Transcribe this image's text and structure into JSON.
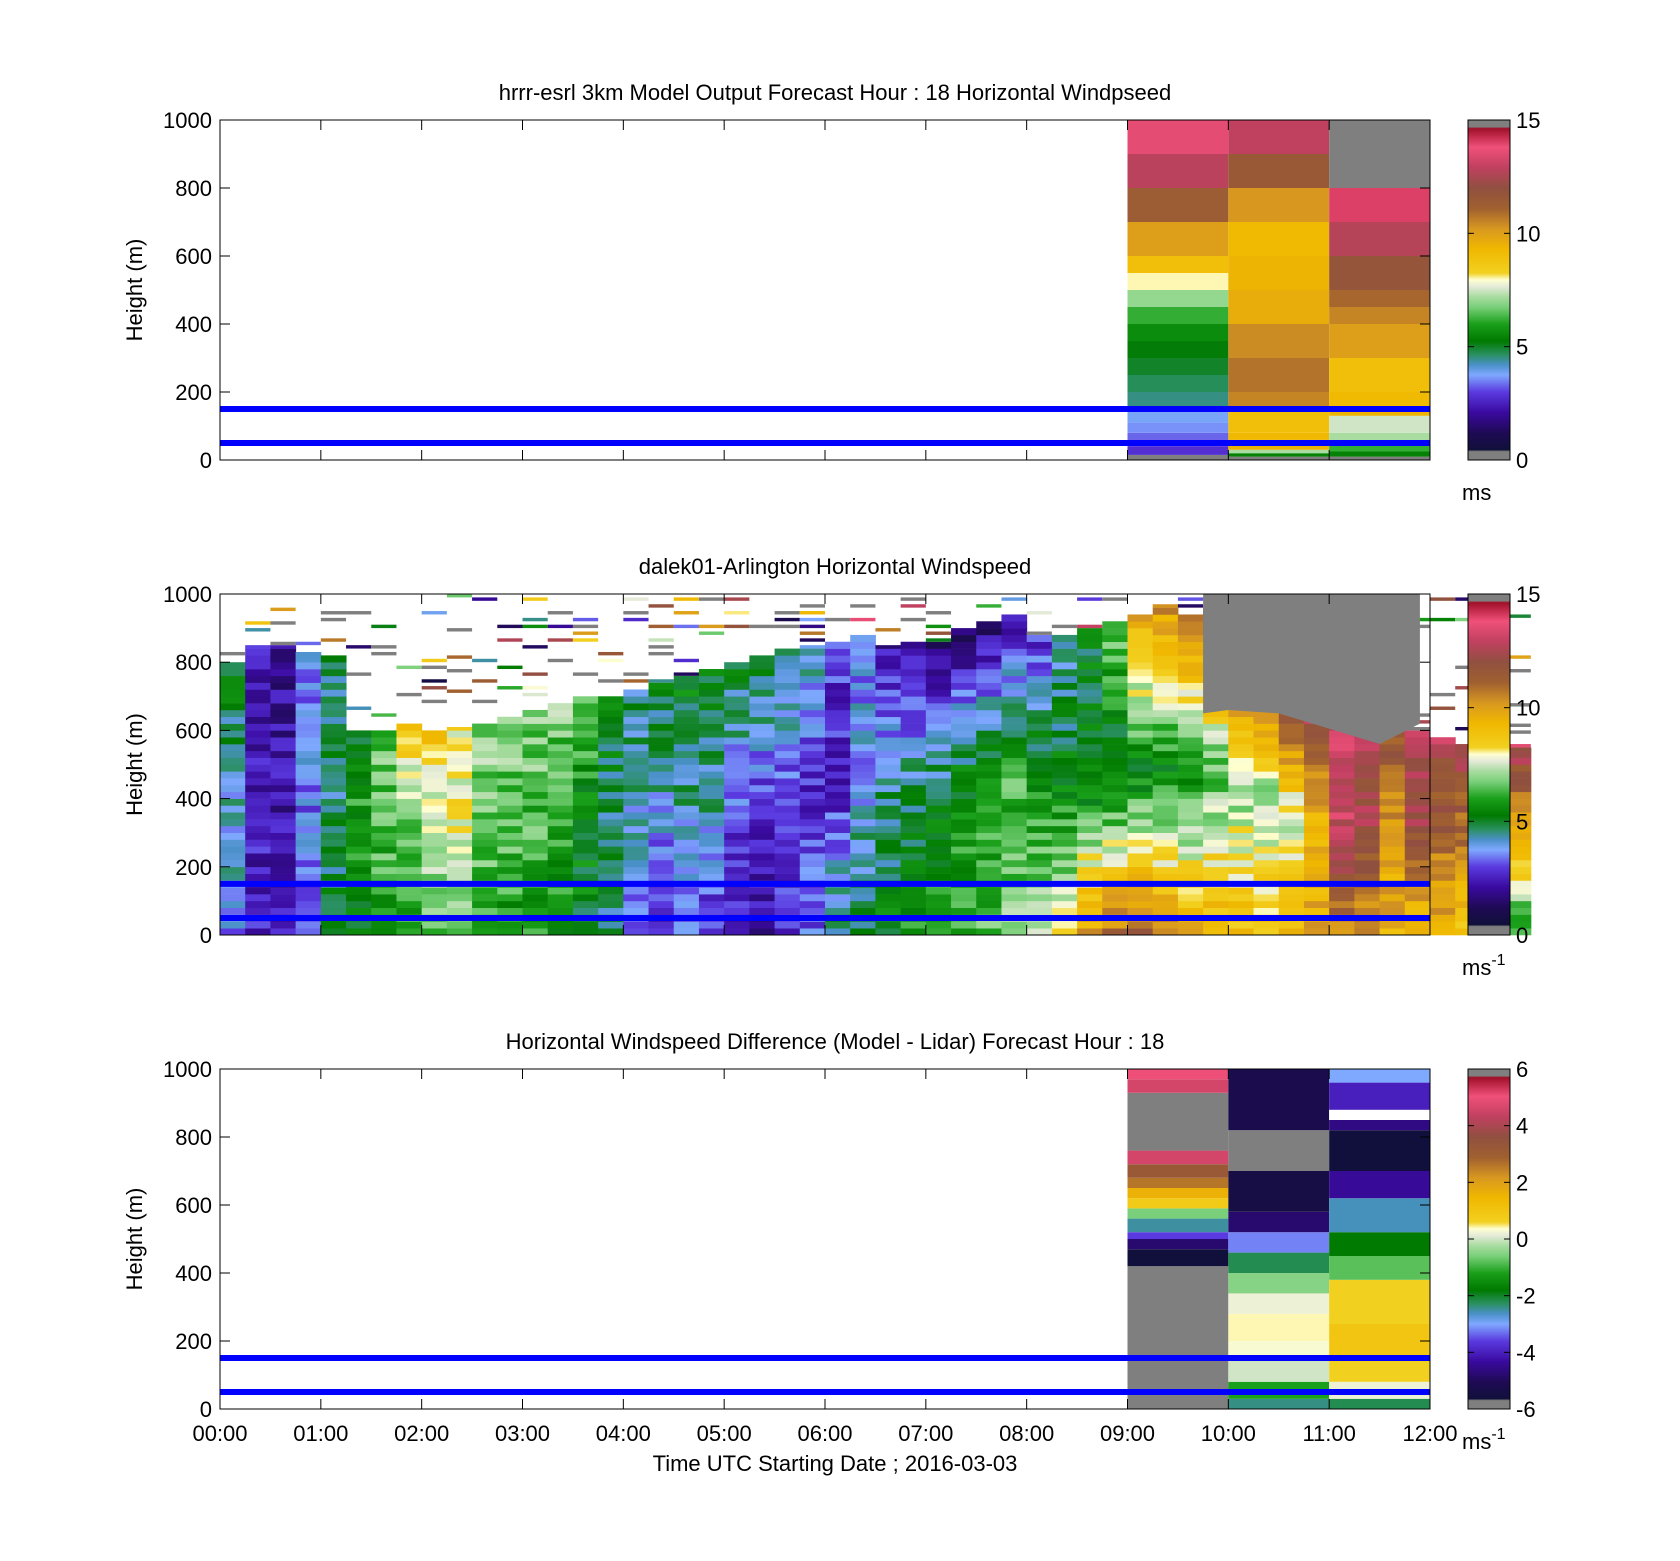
{
  "x_tick_labels": [
    "00:00",
    "01:00",
    "02:00",
    "03:00",
    "04:00",
    "05:00",
    "06:00",
    "07:00",
    "08:00",
    "09:00",
    "10:00",
    "11:00",
    "12:00"
  ],
  "x_axis_label": "Time UTC  Starting Date ; 2016-03-03",
  "reference_heights_m": [
    50,
    150
  ],
  "reference_line_color": "#0000ff",
  "chart_data": [
    {
      "type": "heatmap",
      "title": "hrrr-esrl 3km Model Output   Forecast Hour : 18 Horizontal Windpseed",
      "ylabel": "Height (m)",
      "ylim": [
        0,
        1000
      ],
      "yticks": [
        "0",
        "200",
        "400",
        "600",
        "800",
        "1000"
      ],
      "xlim_hours": [
        0,
        12
      ],
      "colorbar": {
        "min": 0,
        "max": 15,
        "ticks": [
          "0",
          "5",
          "10",
          "15"
        ],
        "unit": "ms"
      },
      "columns": [
        {
          "t0": 9,
          "t1": 10,
          "levels": [
            [
              0,
              15,
              -1
            ],
            [
              15,
              40,
              2.8
            ],
            [
              40,
              60,
              3.0
            ],
            [
              60,
              80,
              3.3
            ],
            [
              80,
              110,
              3.6
            ],
            [
              110,
              150,
              3.8
            ],
            [
              150,
              200,
              4.5
            ],
            [
              200,
              250,
              4.7
            ],
            [
              250,
              300,
              5.0
            ],
            [
              300,
              350,
              5.2
            ],
            [
              350,
              400,
              5.6
            ],
            [
              400,
              450,
              6.2
            ],
            [
              450,
              500,
              7.0
            ],
            [
              500,
              550,
              8.0
            ],
            [
              550,
              600,
              9.0
            ],
            [
              600,
              700,
              10.0
            ],
            [
              700,
              800,
              11.3
            ],
            [
              800,
              900,
              12.8
            ],
            [
              900,
              1000,
              13.6
            ]
          ]
        },
        {
          "t0": 10,
          "t1": 11,
          "levels": [
            [
              0,
              10,
              -1
            ],
            [
              10,
              20,
              5.4
            ],
            [
              20,
              30,
              7.2
            ],
            [
              30,
              60,
              9.5
            ],
            [
              60,
              80,
              9.3
            ],
            [
              80,
              150,
              9.0
            ],
            [
              150,
              200,
              10.5
            ],
            [
              200,
              300,
              10.8
            ],
            [
              300,
              400,
              10.4
            ],
            [
              400,
              500,
              9.6
            ],
            [
              500,
              600,
              9.4
            ],
            [
              600,
              700,
              9.2
            ],
            [
              700,
              800,
              10.2
            ],
            [
              800,
              900,
              11.5
            ],
            [
              900,
              1000,
              12.9
            ]
          ]
        },
        {
          "t0": 11,
          "t1": 12,
          "levels": [
            [
              0,
              10,
              -1
            ],
            [
              10,
              25,
              5.4
            ],
            [
              25,
              50,
              6.2
            ],
            [
              50,
              80,
              7.2
            ],
            [
              80,
              130,
              7.5
            ],
            [
              130,
              150,
              9.4
            ],
            [
              150,
              200,
              9.2
            ],
            [
              200,
              300,
              9.0
            ],
            [
              300,
              400,
              10.0
            ],
            [
              400,
              450,
              10.5
            ],
            [
              450,
              500,
              11.0
            ],
            [
              500,
              600,
              11.7
            ],
            [
              600,
              700,
              12.7
            ],
            [
              700,
              800,
              14.0
            ],
            [
              800,
              1000,
              -1
            ]
          ]
        }
      ]
    },
    {
      "type": "heatmap",
      "title": "dalek01-Arlington  Horizontal Windspeed",
      "ylabel": "Height (m)",
      "ylim": [
        0,
        1000
      ],
      "yticks": [
        "0",
        "200",
        "400",
        "600",
        "800",
        "1000"
      ],
      "xlim_hours": [
        0,
        12
      ],
      "colorbar": {
        "min": 0,
        "max": 15,
        "ticks": [
          "0",
          "5",
          "10",
          "15"
        ],
        "unit": "ms",
        "unit_exponent": "-1"
      },
      "column_width_hours": 0.25,
      "top_m": [
        800,
        850,
        850,
        830,
        820,
        600,
        600,
        620,
        600,
        610,
        620,
        640,
        660,
        680,
        700,
        700,
        720,
        740,
        760,
        780,
        800,
        820,
        840,
        840,
        860,
        880,
        850,
        860,
        860,
        900,
        920,
        940,
        880,
        880,
        900,
        920,
        940,
        970,
        940,
        960,
        900,
        840,
        700,
        650,
        660,
        630,
        640,
        600,
        580,
        560,
        550,
        550
      ],
      "low_m": [
        3.5,
        2.2,
        1.8,
        3.0,
        4.6,
        5.0,
        5.4,
        6.0,
        6.4,
        6.5,
        5.8,
        5.5,
        5.6,
        5.5,
        5.0,
        4.6,
        3.0,
        2.2,
        3.2,
        2.4,
        2.0,
        1.6,
        2.2,
        3.0,
        4.5,
        4.8,
        5.2,
        5.6,
        6.0,
        6.2,
        6.4,
        6.8,
        7.2,
        8.0,
        10.0,
        11.0,
        11.4,
        10.6,
        9.8,
        9.4,
        9.0,
        8.8,
        9.2,
        9.8,
        10.4,
        10.2,
        9.6,
        9.0,
        9.4,
        8.6,
        5.8,
        5.6
      ],
      "mid_m": [
        3.8,
        2.0,
        1.9,
        3.2,
        4.4,
        5.8,
        6.4,
        6.8,
        7.2,
        7.8,
        6.5,
        6.6,
        6.3,
        6.0,
        5.3,
        4.6,
        4.0,
        3.8,
        4.0,
        4.2,
        3.0,
        2.6,
        2.6,
        2.3,
        2.2,
        3.5,
        4.2,
        4.4,
        4.6,
        5.2,
        5.8,
        6.0,
        5.7,
        5.2,
        4.9,
        4.8,
        5.0,
        5.2,
        5.4,
        6.3,
        6.8,
        7.0,
        7.5,
        9.5,
        13.2,
        12.6,
        10.0,
        12.5,
        11.4,
        11.0,
        9.8,
        9.5
      ],
      "high_m": [
        5.2,
        2.2,
        1.6,
        3.2,
        4.4,
        5.2,
        6.6,
        8.8,
        8.8,
        7.8,
        7.0,
        6.6,
        6.8,
        6.8,
        6.5,
        5.0,
        4.4,
        5.0,
        5.2,
        5.0,
        5.0,
        5.2,
        5.0,
        4.2,
        2.6,
        3.4,
        1.8,
        1.4,
        1.2,
        1.0,
        1.0,
        1.8,
        2.4,
        4.0,
        5.0,
        6.5,
        10.0,
        10.5,
        11.0,
        12.5,
        14.0,
        13.5,
        13.0,
        13.0,
        13.5,
        12.8,
        12.5,
        12.8,
        13.0,
        12.8,
        12.0,
        13.0
      ]
    },
    {
      "type": "heatmap",
      "title": "Horizontal Windspeed Difference (Model - Lidar) Forecast Hour : 18",
      "ylabel": "Height (m)",
      "xlabel": "Time UTC  Starting Date ; 2016-03-03",
      "ylim": [
        0,
        1000
      ],
      "yticks": [
        "0",
        "200",
        "400",
        "600",
        "800",
        "1000"
      ],
      "xlim_hours": [
        0,
        12
      ],
      "colorbar": {
        "min": -6,
        "max": 6,
        "ticks": [
          "-6",
          "-4",
          "-2",
          "0",
          "2",
          "4",
          "6"
        ],
        "unit": "ms",
        "unit_exponent": "-1"
      },
      "columns": [
        {
          "t0": 9,
          "t1": 10,
          "levels": [
            [
              0,
              420,
              -99
            ],
            [
              420,
              470,
              -5.6
            ],
            [
              470,
              500,
              -4.8
            ],
            [
              500,
              520,
              -3.6
            ],
            [
              520,
              560,
              -2.5
            ],
            [
              560,
              590,
              -0.6
            ],
            [
              590,
              620,
              0.8
            ],
            [
              620,
              650,
              1.6
            ],
            [
              650,
              680,
              2.6
            ],
            [
              680,
              720,
              3.2
            ],
            [
              720,
              760,
              4.6
            ],
            [
              760,
              930,
              -99
            ],
            [
              930,
              970,
              4.6
            ],
            [
              970,
              1000,
              5.0
            ]
          ]
        },
        {
          "t0": 10,
          "t1": 11,
          "levels": [
            [
              0,
              30,
              -2.4
            ],
            [
              30,
              80,
              -1.2
            ],
            [
              80,
              150,
              0.0
            ],
            [
              150,
              200,
              0.3
            ],
            [
              200,
              280,
              0.4
            ],
            [
              280,
              340,
              0.2
            ],
            [
              340,
              400,
              -0.5
            ],
            [
              400,
              460,
              -2.2
            ],
            [
              460,
              520,
              -3.2
            ],
            [
              520,
              580,
              -4.8
            ],
            [
              580,
              700,
              -5.4
            ],
            [
              700,
              820,
              -5.7
            ],
            [
              820,
              1000,
              -5.2
            ]
          ]
        },
        {
          "t0": 11,
          "t1": 12,
          "levels": [
            [
              0,
              30,
              -2.2
            ],
            [
              30,
              80,
              0.2
            ],
            [
              80,
              150,
              0.6
            ],
            [
              150,
              250,
              1.0
            ],
            [
              250,
              380,
              0.6
            ],
            [
              380,
              450,
              -0.8
            ],
            [
              450,
              520,
              -1.8
            ],
            [
              520,
              620,
              -2.6
            ],
            [
              620,
              700,
              -4.4
            ],
            [
              700,
              820,
              -5.6
            ],
            [
              820,
              850,
              -4.6
            ],
            [
              850,
              880,
              -99.5
            ],
            [
              880,
              960,
              -4.0
            ],
            [
              960,
              1000,
              -3.0
            ]
          ]
        }
      ]
    }
  ]
}
